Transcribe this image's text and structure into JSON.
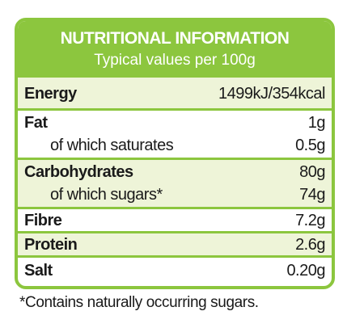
{
  "header": {
    "title": "NUTRITIONAL INFORMATION",
    "subtitle": "Typical values per 100g"
  },
  "table": {
    "rows": [
      [
        "Energy",
        "1499kJ/354kcal"
      ],
      [
        "Fat",
        "1g"
      ],
      [
        "of which saturates",
        "0.5g"
      ],
      [
        "Carbohydrates",
        "80g"
      ],
      [
        "of which sugars*",
        "74g"
      ],
      [
        "Fibre",
        "7.2g"
      ],
      [
        "Protein",
        "2.6g"
      ],
      [
        "Salt",
        "0.20g"
      ]
    ]
  },
  "footnote": "*Contains naturally occurring sugars."
}
